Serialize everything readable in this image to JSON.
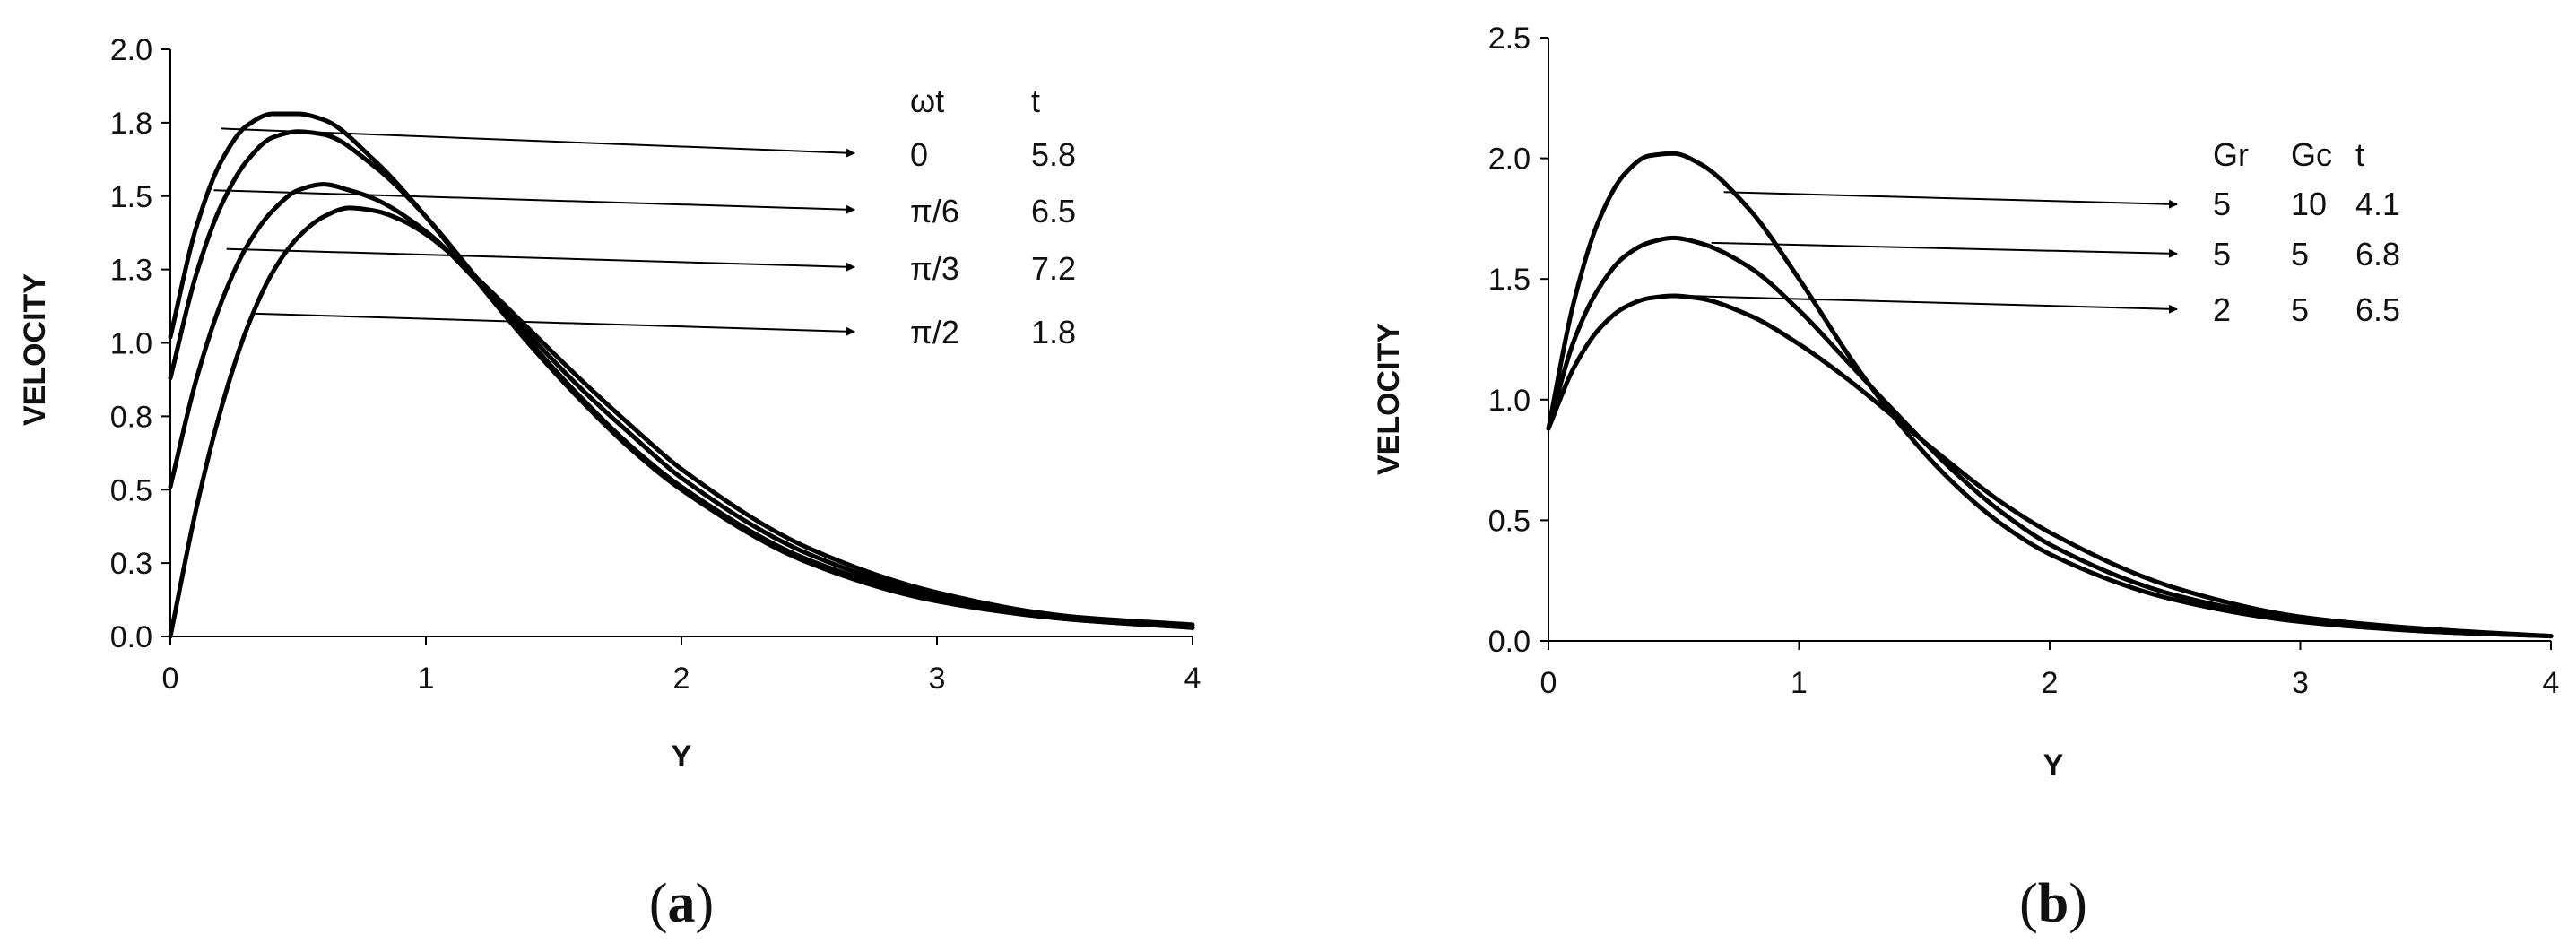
{
  "chart_data": [
    {
      "type": "line",
      "panel_label": "a",
      "xlabel": "Y",
      "ylabel": "VELOCITY",
      "xlim": [
        0,
        4
      ],
      "ylim": [
        0,
        2.0
      ],
      "x_ticks": [
        "0",
        "1",
        "2",
        "3",
        "4"
      ],
      "y_ticks": [
        "0.0",
        "0.3",
        "0.5",
        "0.8",
        "1.0",
        "1.3",
        "1.5",
        "1.8",
        "2.0"
      ],
      "grid": false,
      "table": {
        "headers": [
          "ωt",
          "t"
        ],
        "rows": [
          [
            "0",
            "5.8"
          ],
          [
            "π/6",
            "6.5"
          ],
          [
            "π/3",
            "7.2"
          ],
          [
            "π/2",
            "1.8"
          ]
        ]
      },
      "series": [
        {
          "x": [
            0,
            0.1,
            0.2,
            0.3,
            0.4,
            0.5,
            0.6,
            0.8,
            1.0,
            1.2,
            1.4,
            1.6,
            1.8,
            2.0,
            2.5,
            3.0,
            3.5,
            4.0
          ],
          "values": [
            1.02,
            1.39,
            1.62,
            1.74,
            1.78,
            1.78,
            1.76,
            1.62,
            1.43,
            1.21,
            1.0,
            0.81,
            0.64,
            0.5,
            0.25,
            0.12,
            0.06,
            0.03
          ]
        },
        {
          "x": [
            0,
            0.1,
            0.2,
            0.3,
            0.4,
            0.5,
            0.6,
            0.8,
            1.0,
            1.2,
            1.4,
            1.6,
            1.8,
            2.0,
            2.5,
            3.0,
            3.5,
            4.0
          ],
          "values": [
            0.88,
            1.23,
            1.47,
            1.62,
            1.7,
            1.72,
            1.71,
            1.6,
            1.43,
            1.22,
            1.01,
            0.82,
            0.65,
            0.51,
            0.26,
            0.13,
            0.06,
            0.03
          ]
        },
        {
          "x": [
            0,
            0.1,
            0.2,
            0.3,
            0.4,
            0.5,
            0.6,
            0.7,
            0.8,
            1.0,
            1.2,
            1.4,
            1.6,
            1.8,
            2.0,
            2.5,
            3.0,
            3.5,
            4.0
          ],
          "values": [
            0.51,
            0.87,
            1.14,
            1.33,
            1.45,
            1.52,
            1.54,
            1.52,
            1.49,
            1.38,
            1.21,
            1.03,
            0.85,
            0.69,
            0.54,
            0.28,
            0.14,
            0.07,
            0.03
          ]
        },
        {
          "x": [
            0,
            0.1,
            0.2,
            0.3,
            0.4,
            0.5,
            0.6,
            0.7,
            0.8,
            0.9,
            1.0,
            1.2,
            1.4,
            1.6,
            1.8,
            2.0,
            2.5,
            3.0,
            3.5,
            4.0
          ],
          "values": [
            0.0,
            0.43,
            0.78,
            1.05,
            1.24,
            1.36,
            1.43,
            1.46,
            1.45,
            1.42,
            1.37,
            1.22,
            1.05,
            0.88,
            0.72,
            0.57,
            0.3,
            0.15,
            0.07,
            0.04
          ]
        }
      ]
    },
    {
      "type": "line",
      "panel_label": "b",
      "xlabel": "Y",
      "ylabel": "VELOCITY",
      "xlim": [
        0,
        4
      ],
      "ylim": [
        0,
        2.5
      ],
      "x_ticks": [
        "0",
        "1",
        "2",
        "3",
        "4"
      ],
      "y_ticks": [
        "0.0",
        "0.5",
        "1.0",
        "1.5",
        "2.0",
        "2.5"
      ],
      "grid": false,
      "table": {
        "headers": [
          "Gr",
          "Gc",
          "t"
        ],
        "rows": [
          [
            "5",
            "10",
            "4.1"
          ],
          [
            "5",
            "5",
            "6.8"
          ],
          [
            "2",
            "5",
            "6.5"
          ]
        ]
      },
      "series": [
        {
          "x": [
            0,
            0.1,
            0.2,
            0.3,
            0.4,
            0.5,
            0.6,
            0.8,
            1.0,
            1.2,
            1.4,
            1.6,
            1.8,
            2.0,
            2.5,
            3.0,
            3.5,
            4.0
          ],
          "values": [
            0.88,
            1.4,
            1.74,
            1.93,
            2.01,
            2.02,
            1.98,
            1.79,
            1.5,
            1.18,
            0.9,
            0.67,
            0.49,
            0.36,
            0.17,
            0.08,
            0.04,
            0.02
          ]
        },
        {
          "x": [
            0,
            0.1,
            0.2,
            0.3,
            0.4,
            0.5,
            0.6,
            0.8,
            1.0,
            1.2,
            1.4,
            1.6,
            1.8,
            2.0,
            2.5,
            3.0,
            3.5,
            4.0
          ],
          "values": [
            0.88,
            1.24,
            1.46,
            1.59,
            1.65,
            1.67,
            1.65,
            1.55,
            1.37,
            1.15,
            0.93,
            0.72,
            0.54,
            0.4,
            0.19,
            0.09,
            0.04,
            0.02
          ]
        },
        {
          "x": [
            0,
            0.1,
            0.2,
            0.3,
            0.4,
            0.5,
            0.6,
            0.8,
            1.0,
            1.2,
            1.4,
            1.6,
            1.8,
            2.0,
            2.5,
            3.0,
            3.5,
            4.0
          ],
          "values": [
            0.88,
            1.13,
            1.29,
            1.38,
            1.42,
            1.43,
            1.42,
            1.35,
            1.23,
            1.08,
            0.91,
            0.74,
            0.58,
            0.45,
            0.22,
            0.1,
            0.05,
            0.02
          ]
        }
      ]
    }
  ]
}
